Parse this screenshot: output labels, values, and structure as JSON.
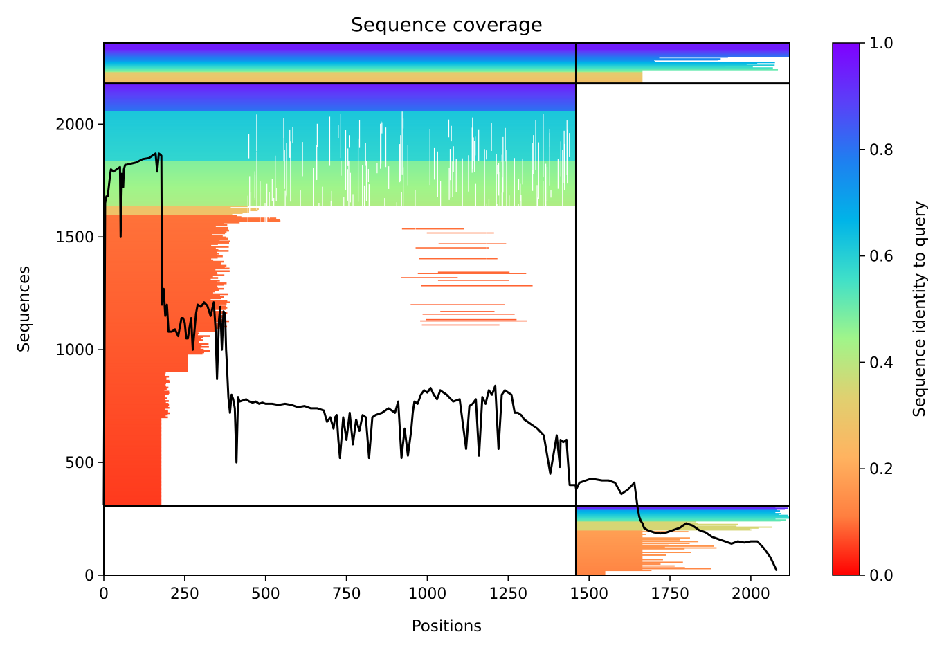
{
  "chart_data": {
    "type": "heatmap",
    "title": "Sequence coverage",
    "xlabel": "Positions",
    "ylabel": "Sequences",
    "xlim": [
      0,
      2120
    ],
    "ylim": [
      0,
      2360
    ],
    "xticks": [
      0,
      250,
      500,
      750,
      1000,
      1250,
      1500,
      1750,
      2000
    ],
    "yticks": [
      0,
      500,
      1000,
      1500,
      2000
    ],
    "colorbar": {
      "label": "Sequence identity to query",
      "colormap": "rainbow",
      "range": [
        0,
        1
      ],
      "ticks": [
        0.0,
        0.2,
        0.4,
        0.6,
        0.8,
        1.0
      ],
      "tick_labels": [
        "0.0",
        "0.2",
        "0.4",
        "0.6",
        "0.8",
        "1.0"
      ],
      "stops": [
        "#ff0000",
        "#ff7f40",
        "#ffb360",
        "#e0d070",
        "#a0f58a",
        "#40e0c8",
        "#00b4e8",
        "#1e80f0",
        "#5a40f8",
        "#8000ff"
      ]
    },
    "chain_boundaries": {
      "x": [
        1460
      ],
      "y": [
        308,
        2180
      ]
    },
    "blocks": [
      {
        "name": "paired-both-chains",
        "x": [
          0,
          2120
        ],
        "y": [
          2180,
          2360
        ]
      },
      {
        "name": "chain-A-only",
        "x": [
          0,
          1460
        ],
        "y": [
          308,
          2180
        ]
      },
      {
        "name": "chain-B-only",
        "x": [
          1460,
          2120
        ],
        "y": [
          0,
          308
        ]
      }
    ],
    "coverage_line": {
      "color": "#000000",
      "x": [
        0,
        4,
        8,
        12,
        20,
        22,
        30,
        40,
        50,
        52,
        56,
        60,
        62,
        66,
        70,
        100,
        120,
        140,
        150,
        160,
        165,
        170,
        175,
        178,
        180,
        185,
        190,
        195,
        200,
        210,
        220,
        230,
        240,
        245,
        250,
        255,
        260,
        265,
        270,
        275,
        280,
        285,
        290,
        300,
        310,
        320,
        330,
        340,
        345,
        350,
        352,
        356,
        360,
        365,
        370,
        375,
        378,
        380,
        385,
        390,
        395,
        400,
        405,
        410,
        415,
        420,
        430,
        440,
        450,
        460,
        470,
        480,
        490,
        500,
        520,
        540,
        560,
        580,
        600,
        620,
        640,
        660,
        680,
        690,
        700,
        710,
        715,
        720,
        725,
        730,
        740,
        750,
        760,
        770,
        780,
        790,
        800,
        810,
        820,
        830,
        840,
        860,
        880,
        900,
        910,
        920,
        930,
        940,
        950,
        955,
        960,
        970,
        980,
        990,
        1000,
        1010,
        1020,
        1030,
        1040,
        1050,
        1060,
        1080,
        1100,
        1120,
        1130,
        1140,
        1150,
        1160,
        1170,
        1180,
        1190,
        1200,
        1210,
        1220,
        1230,
        1240,
        1250,
        1260,
        1270,
        1280,
        1290,
        1300,
        1310,
        1320,
        1340,
        1360,
        1380,
        1400,
        1410,
        1412,
        1420,
        1430,
        1440,
        1450,
        1458,
        1460,
        1470,
        1480,
        1490,
        1500,
        1520,
        1540,
        1560,
        1580,
        1600,
        1620,
        1640,
        1650,
        1655,
        1660,
        1665,
        1670,
        1680,
        1700,
        1720,
        1740,
        1760,
        1780,
        1800,
        1820,
        1840,
        1860,
        1880,
        1900,
        1920,
        1940,
        1960,
        1980,
        2000,
        2020,
        2040,
        2060,
        2080,
        2090,
        2100,
        2110,
        2115,
        2120
      ],
      "y": [
        310,
        1650,
        1680,
        1680,
        1780,
        1800,
        1790,
        1800,
        1810,
        1500,
        1780,
        1720,
        1800,
        1820,
        1820,
        1830,
        1845,
        1850,
        1860,
        1870,
        1790,
        1870,
        1865,
        1860,
        1200,
        1270,
        1150,
        1200,
        1080,
        1080,
        1090,
        1060,
        1140,
        1140,
        1120,
        1050,
        1050,
        1100,
        1140,
        1000,
        1080,
        1160,
        1200,
        1190,
        1210,
        1195,
        1150,
        1210,
        1100,
        870,
        950,
        1130,
        1190,
        1000,
        1170,
        1160,
        1000,
        950,
        790,
        720,
        800,
        780,
        740,
        500,
        790,
        770,
        775,
        780,
        770,
        765,
        770,
        760,
        765,
        760,
        760,
        755,
        760,
        755,
        745,
        750,
        740,
        740,
        730,
        680,
        700,
        650,
        700,
        710,
        600,
        520,
        700,
        600,
        720,
        580,
        690,
        640,
        710,
        700,
        520,
        700,
        710,
        720,
        740,
        720,
        770,
        520,
        650,
        530,
        640,
        720,
        770,
        760,
        800,
        820,
        810,
        830,
        800,
        780,
        820,
        810,
        800,
        770,
        780,
        560,
        750,
        760,
        780,
        530,
        790,
        760,
        820,
        800,
        840,
        560,
        800,
        820,
        810,
        800,
        720,
        720,
        710,
        690,
        680,
        670,
        650,
        620,
        450,
        620,
        480,
        600,
        590,
        600,
        400,
        400,
        400,
        380,
        410,
        415,
        420,
        425,
        425,
        420,
        420,
        410,
        360,
        380,
        410,
        300,
        260,
        240,
        230,
        210,
        200,
        190,
        185,
        190,
        200,
        210,
        230,
        220,
        200,
        190,
        170,
        160,
        150,
        140,
        150,
        145,
        150,
        150,
        120,
        80,
        20
      ]
    }
  }
}
